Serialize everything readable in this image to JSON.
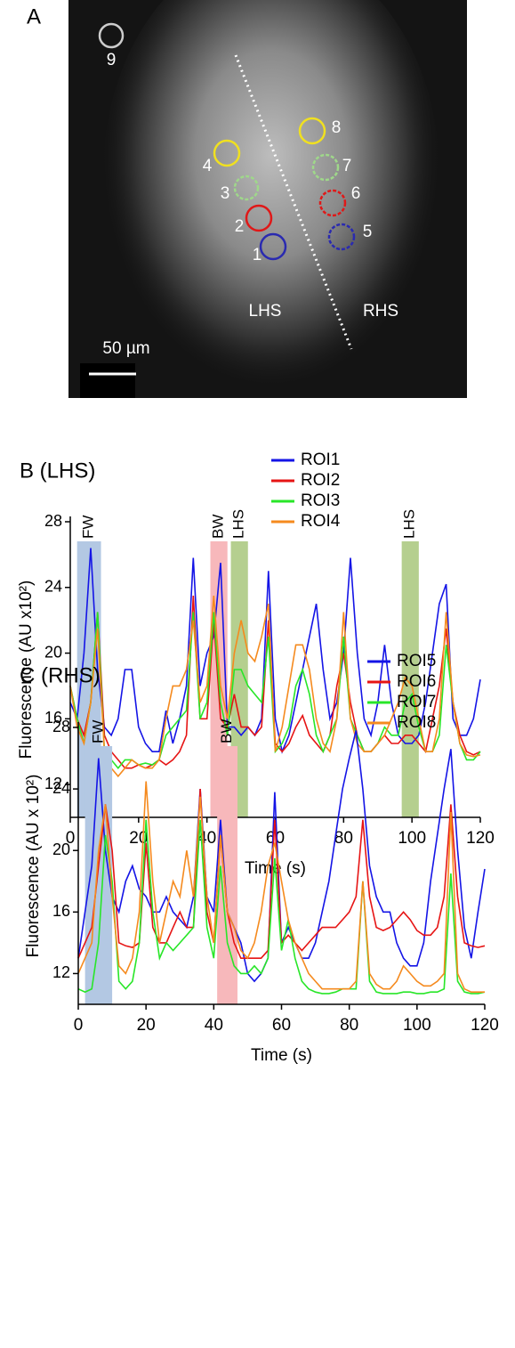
{
  "panel_a": {
    "label": "A",
    "rois": [
      "1",
      "2",
      "3",
      "4",
      "5",
      "6",
      "7",
      "8",
      "9"
    ],
    "lhs": "LHS",
    "rhs": "RHS",
    "scale_bar": "50 µm"
  },
  "chart_data": [
    {
      "type": "line",
      "title": "B (LHS)",
      "xlabel": "Time (s)",
      "ylabel": "Fluorescence (AU x10²)",
      "x": [
        0,
        2,
        4,
        6,
        8,
        10,
        12,
        14,
        16,
        18,
        20,
        22,
        24,
        26,
        28,
        30,
        32,
        34,
        36,
        38,
        40,
        42,
        44,
        46,
        48,
        50,
        52,
        54,
        56,
        58,
        60,
        62,
        64,
        66,
        68,
        70,
        72,
        74,
        76,
        78,
        80,
        82,
        84,
        86,
        88,
        90,
        92,
        94,
        96,
        98,
        100,
        102,
        104,
        106,
        108,
        110,
        112,
        114,
        116,
        118,
        120
      ],
      "series": [
        {
          "name": "ROI1",
          "color": "#1414e6",
          "values": [
            17,
            16,
            20,
            26.4,
            19,
            15.5,
            15,
            16,
            19,
            19,
            15.5,
            14.5,
            14,
            14,
            16.5,
            14.5,
            16,
            18,
            25.8,
            18,
            20,
            21,
            25.5,
            15.5,
            15.5,
            15,
            15.5,
            15,
            16,
            25,
            16,
            14,
            15,
            17,
            19,
            21,
            23,
            19,
            16,
            17,
            20,
            25.8,
            20,
            16,
            15,
            17,
            20.5,
            17,
            15,
            14.5,
            14.5,
            15,
            17,
            20,
            23,
            24.2,
            16,
            15,
            15,
            16,
            18.4
          ]
        },
        {
          "name": "ROI2",
          "color": "#e61414",
          "values": [
            18,
            16,
            15,
            17,
            22.5,
            15,
            14,
            13.5,
            13,
            13,
            13.2,
            13,
            13.2,
            13.5,
            13.2,
            13.5,
            14,
            15,
            23.5,
            16,
            16,
            22,
            16,
            15.5,
            17.5,
            15.5,
            15.5,
            15,
            15.5,
            22,
            14.5,
            14,
            14.5,
            15.5,
            16.2,
            15,
            14.5,
            14,
            15,
            18,
            20,
            17,
            15,
            14,
            14,
            14.5,
            15,
            14.5,
            14.5,
            15,
            15,
            14.5,
            14,
            16,
            18,
            21.5,
            17,
            15,
            14,
            13.8,
            14
          ]
        },
        {
          "name": "ROI3",
          "color": "#28e628",
          "values": [
            18,
            16,
            14.5,
            17,
            22.5,
            14,
            13.5,
            13,
            13.5,
            13.5,
            13.2,
            13.3,
            13.2,
            13.5,
            15,
            15.5,
            16,
            16.5,
            22.5,
            16,
            17,
            22.5,
            17,
            15,
            19,
            19,
            18,
            17.5,
            17,
            21,
            14,
            14.5,
            15.5,
            18,
            19,
            17.5,
            15,
            14,
            15,
            16,
            21,
            16,
            15,
            14,
            14,
            14.5,
            15.5,
            15,
            15,
            17,
            17.5,
            15.5,
            14,
            14,
            15,
            20.5,
            17,
            14.5,
            13.5,
            13.5,
            14
          ]
        },
        {
          "name": "ROI4",
          "color": "#f58a1e",
          "values": [
            18,
            15.5,
            14.5,
            17,
            21.5,
            14,
            13,
            12.5,
            13,
            13.5,
            13.2,
            13,
            13,
            13.5,
            16,
            18,
            18,
            19,
            22,
            17,
            18,
            23.5,
            18,
            16,
            20,
            22,
            20,
            19.5,
            21,
            23,
            14,
            15.5,
            18,
            20.5,
            20.5,
            19,
            16,
            14.5,
            14,
            16,
            22.5,
            16,
            14.5,
            14,
            14,
            14.5,
            15,
            16,
            17,
            18.5,
            18,
            16,
            14,
            14,
            16,
            22.5,
            17,
            14.5,
            13.8,
            13.7,
            13.8
          ]
        }
      ],
      "bands": [
        {
          "label": "FW",
          "start": 2,
          "end": 9,
          "color": "#b3c8e3"
        },
        {
          "label": "BW",
          "start": 41,
          "end": 46,
          "color": "#f7b8bb"
        },
        {
          "label": "LHS",
          "start": 47,
          "end": 52,
          "color": "#b5cf8f"
        },
        {
          "label": "LHS",
          "start": 97,
          "end": 102,
          "color": "#b5cf8f"
        }
      ],
      "xlim": [
        0,
        120
      ],
      "xticks": [
        0,
        20,
        40,
        60,
        80,
        100,
        120
      ],
      "ylim": [
        10,
        28
      ],
      "yticks": [
        12,
        16,
        20,
        24,
        28
      ],
      "legend": "top-right"
    },
    {
      "type": "line",
      "title": "C (RHS)",
      "xlabel": "Time (s)",
      "ylabel": "Fluorescence (AU x 10²)",
      "x": [
        0,
        2,
        4,
        6,
        8,
        10,
        12,
        14,
        16,
        18,
        20,
        22,
        24,
        26,
        28,
        30,
        32,
        34,
        36,
        38,
        40,
        42,
        44,
        46,
        48,
        50,
        52,
        54,
        56,
        58,
        60,
        62,
        64,
        66,
        68,
        70,
        72,
        74,
        76,
        78,
        80,
        82,
        84,
        86,
        88,
        90,
        92,
        94,
        96,
        98,
        100,
        102,
        104,
        106,
        108,
        110,
        112,
        114,
        116,
        118,
        120
      ],
      "series": [
        {
          "name": "ROI5",
          "color": "#1414e6",
          "values": [
            13,
            16,
            19,
            26,
            20,
            17,
            16,
            18,
            19,
            17.5,
            17,
            16,
            16,
            17,
            16,
            15.5,
            15,
            17,
            24,
            17,
            16,
            22,
            16,
            15,
            14,
            12,
            11.5,
            12,
            13,
            23.8,
            14,
            15,
            14,
            13,
            13,
            14,
            16,
            18,
            21,
            24,
            26,
            27.8,
            24,
            19,
            17,
            16,
            16,
            14,
            13,
            12.5,
            12.5,
            14,
            18,
            21,
            24,
            26.6,
            20,
            15,
            13,
            16,
            18.8
          ]
        },
        {
          "name": "ROI6",
          "color": "#e61414",
          "values": [
            13,
            14,
            15,
            19,
            23,
            20,
            14,
            13.8,
            13.7,
            14,
            20.5,
            15,
            14,
            14,
            15,
            16,
            15,
            15,
            24,
            16,
            14,
            21,
            16,
            14,
            13,
            13,
            13,
            13,
            13.5,
            22,
            14,
            14.5,
            14,
            13.5,
            14,
            14.5,
            15,
            15,
            15,
            15.5,
            16,
            17,
            22,
            17,
            15,
            14.8,
            15,
            15.5,
            16,
            15.5,
            14.8,
            14.5,
            14.5,
            15,
            17,
            23,
            17,
            14,
            13.8,
            13.7,
            13.8
          ]
        },
        {
          "name": "ROI7",
          "color": "#28e628",
          "values": [
            11,
            10.8,
            11,
            14,
            21,
            18,
            11.5,
            11,
            11.5,
            14,
            22,
            16,
            13,
            14,
            13.5,
            14,
            14.5,
            15,
            22,
            15,
            13,
            19,
            14,
            12.5,
            12,
            12,
            12.5,
            12,
            13,
            19.5,
            13.5,
            15.5,
            13,
            11.5,
            11,
            10.8,
            10.7,
            10.7,
            10.8,
            11,
            11,
            11,
            18,
            11.5,
            10.8,
            10.7,
            10.7,
            10.7,
            10.8,
            10.8,
            10.7,
            10.7,
            10.8,
            10.8,
            11,
            18.5,
            11.5,
            10.8,
            10.7,
            10.7,
            10.8
          ]
        },
        {
          "name": "ROI8",
          "color": "#f58a1e",
          "values": [
            12,
            13,
            14,
            20,
            23,
            17,
            12.5,
            12,
            13,
            16,
            24.5,
            18,
            14,
            16,
            18,
            17,
            20,
            17,
            23.5,
            17,
            14,
            21,
            16,
            15,
            13.5,
            13,
            14,
            16,
            19,
            20.5,
            18,
            15.5,
            14,
            13,
            12,
            11.5,
            11,
            11,
            11,
            11,
            11,
            11.5,
            18,
            12,
            11.3,
            11,
            11,
            11.5,
            12.5,
            12,
            11.5,
            11.2,
            11.2,
            11.5,
            12,
            22.5,
            12,
            11,
            10.8,
            10.8,
            10.8
          ]
        }
      ],
      "bands": [
        {
          "label": "FW",
          "start": 2,
          "end": 10,
          "color": "#b3c8e3"
        },
        {
          "label": "BW",
          "start": 41,
          "end": 47,
          "color": "#f7b8bb"
        }
      ],
      "xlim": [
        0,
        120
      ],
      "xticks": [
        0,
        20,
        40,
        60,
        80,
        100,
        120
      ],
      "ylim": [
        10,
        28
      ],
      "yticks": [
        12,
        16,
        20,
        24,
        28
      ],
      "legend": "top-right"
    }
  ]
}
